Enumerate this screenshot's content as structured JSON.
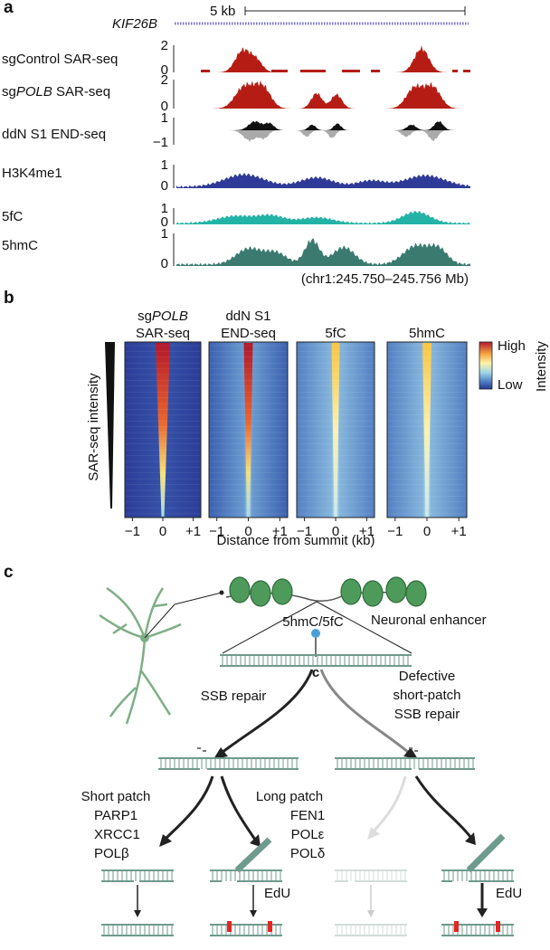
{
  "panel_a": {
    "label": "a",
    "scale_bar": "5 kb",
    "gene": "KIF26B",
    "tracks": [
      {
        "name": [
          {
            "text": "sgControl SAR-seq"
          }
        ],
        "ticks": [
          "2",
          "0"
        ]
      },
      {
        "name": [
          {
            "text": "sg"
          },
          {
            "text": "POLB",
            "italic": true
          },
          {
            "text": " SAR-seq"
          }
        ],
        "ticks": [
          "2",
          "0"
        ]
      },
      {
        "name": [
          {
            "text": "ddN S1 END-seq"
          }
        ],
        "ticks": [
          "1",
          "−1"
        ]
      },
      {
        "name": [
          {
            "text": "H3K4me1"
          }
        ],
        "ticks": [
          "1",
          "0"
        ]
      },
      {
        "name": [
          {
            "text": "5fC"
          }
        ],
        "ticks": [
          "1",
          "0"
        ]
      },
      {
        "name": [
          {
            "text": "5hmC"
          }
        ],
        "ticks": [
          "1",
          "0"
        ]
      }
    ],
    "coordinates": "(chr1:245.750–245.756 Mb)"
  },
  "panel_b": {
    "label": "b",
    "columns": [
      {
        "title": [
          [
            {
              "text": "sg"
            },
            {
              "text": "POLB",
              "italic": true
            }
          ],
          [
            {
              "text": "SAR-seq"
            }
          ]
        ]
      },
      {
        "title": [
          [
            {
              "text": "ddN S1"
            }
          ],
          [
            {
              "text": "END-seq"
            }
          ]
        ]
      },
      {
        "title": [
          [
            {
              "text": "5fC"
            }
          ]
        ]
      },
      {
        "title": [
          [
            {
              "text": "5hmC"
            }
          ]
        ]
      }
    ],
    "x_ticks": [
      "−1",
      "0",
      "+1"
    ],
    "x_label": "Distance from summit (kb)",
    "y_label": "SAR-seq intensity",
    "colorbar": {
      "high": "High",
      "low": "Low",
      "title": "Intensity"
    }
  },
  "panel_c": {
    "label": "c",
    "enhancer": "Neuronal enhancer",
    "modification": "5hmC/5fC",
    "base": "c",
    "ssb_repair": "SSB repair",
    "defective": [
      "Defective",
      "short-patch",
      "SSB repair"
    ],
    "short_patch": {
      "title": "Short patch",
      "factors": [
        "PARP1",
        "XRCC1",
        "POLβ"
      ]
    },
    "long_patch": {
      "title": "Long patch",
      "factors": [
        "FEN1",
        "POLε",
        "POLδ"
      ]
    },
    "edu": [
      "EdU",
      "EdU"
    ]
  }
}
